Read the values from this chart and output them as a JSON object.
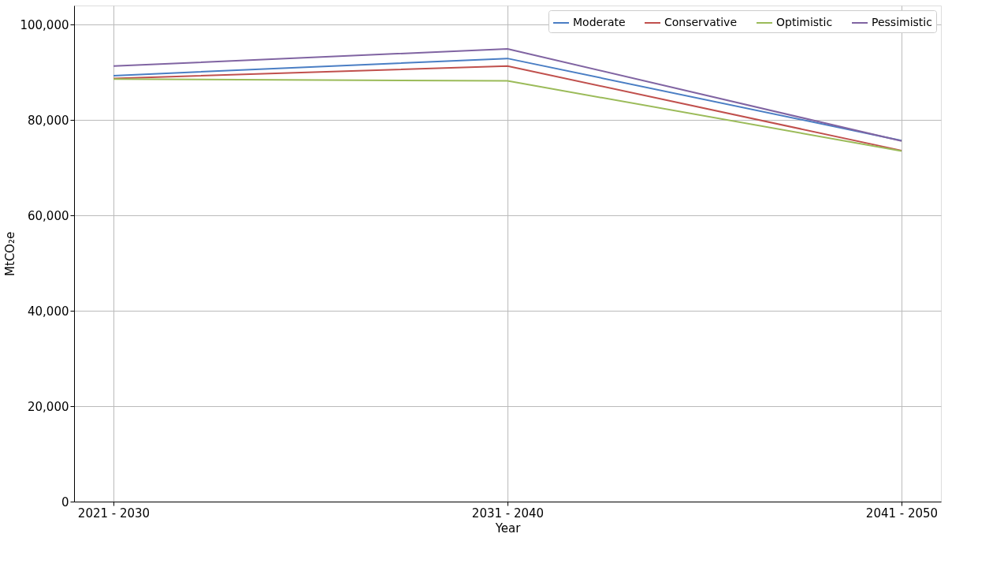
{
  "chart_data": {
    "type": "line",
    "xlabel": "Year",
    "ylabel": "MtCO₂e",
    "categories": [
      "2021 - 2030",
      "2031 - 2040",
      "2041 - 2050"
    ],
    "series": [
      {
        "name": "Moderate",
        "color": "#4a7ec4",
        "values": [
          89300,
          92900,
          75700
        ]
      },
      {
        "name": "Conservative",
        "color": "#c0504d",
        "values": [
          88700,
          91300,
          73600
        ]
      },
      {
        "name": "Optimistic",
        "color": "#9bbb59",
        "values": [
          88600,
          88200,
          73500
        ]
      },
      {
        "name": "Pessimistic",
        "color": "#8064a2",
        "values": [
          91300,
          94900,
          75600
        ]
      }
    ],
    "ylim": [
      0,
      104000
    ],
    "yticks": [
      {
        "value": 0,
        "label": "0"
      },
      {
        "value": 20000,
        "label": "20,000"
      },
      {
        "value": 40000,
        "label": "40,000"
      },
      {
        "value": 60000,
        "label": "60,000"
      },
      {
        "value": 80000,
        "label": "80,000"
      },
      {
        "value": 100000,
        "label": "100,000"
      }
    ],
    "grid": true,
    "legend": "top right",
    "marker": "none",
    "line_style": "solid"
  }
}
